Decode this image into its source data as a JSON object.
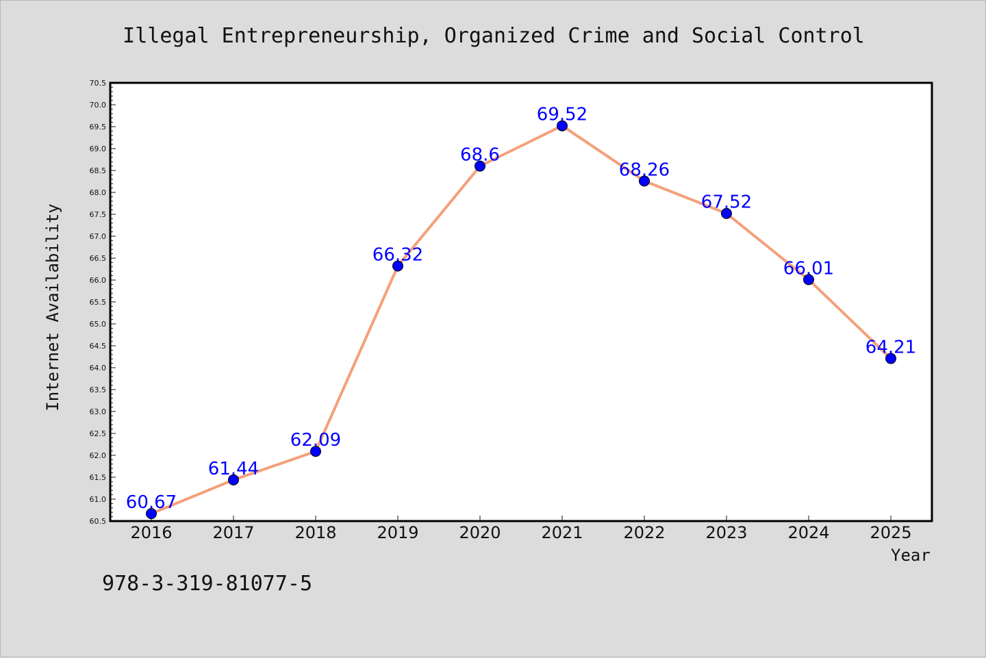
{
  "chart_data": {
    "type": "line",
    "title": "Illegal Entrepreneurship, Organized Crime and Social Control",
    "xlabel": "Year",
    "ylabel": "Internet Availability",
    "categories": [
      "2016",
      "2017",
      "2018",
      "2019",
      "2020",
      "2021",
      "2022",
      "2023",
      "2024",
      "2025"
    ],
    "series": [
      {
        "values": [
          60.67,
          61.44,
          62.09,
          66.32,
          68.6,
          69.52,
          68.26,
          67.52,
          66.01,
          64.21
        ],
        "data_labels": [
          "60.67",
          "61.44",
          "62.09",
          "66.32",
          "68.6",
          "69.52",
          "68.26",
          "67.52",
          "66.01",
          "64.21"
        ]
      }
    ],
    "ylim": [
      60.5,
      70.5
    ],
    "yticks": [
      "60.5",
      "61.0",
      "61.5",
      "62.0",
      "62.5",
      "63.0",
      "63.5",
      "64.0",
      "64.5",
      "65.0",
      "65.5",
      "66.0",
      "66.5",
      "67.0",
      "67.5",
      "68.0",
      "68.5",
      "69.0",
      "69.5",
      "70.0",
      "70.5"
    ],
    "grid": false,
    "line_color": "#f4a07a",
    "marker_color": "#0000ff",
    "label_color": "#0000ff",
    "annotation": "978-3-319-81077-5"
  }
}
